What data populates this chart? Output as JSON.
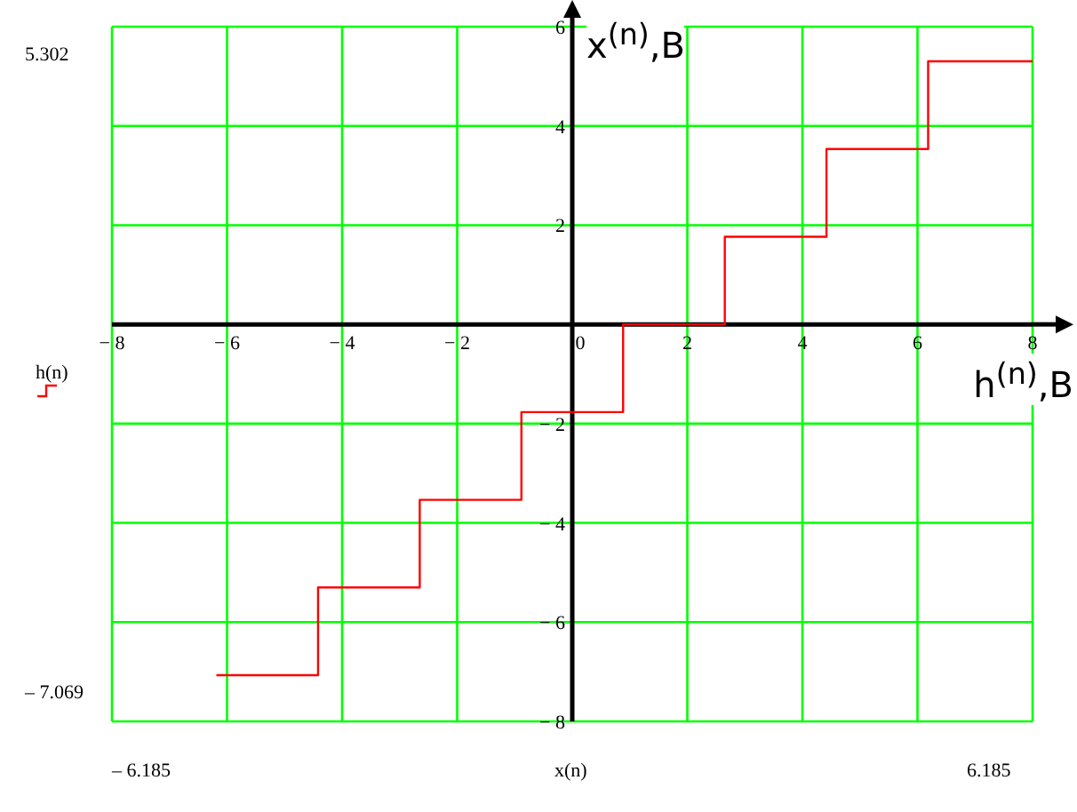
{
  "chart_data": {
    "type": "step",
    "xlabel": "h$^{(n)}$,B",
    "ylabel": "x$^{(n)}$,B",
    "x": [
      -6.185,
      -4.418,
      -2.651,
      -0.884,
      0.884,
      2.651,
      4.418,
      6.185,
      8
    ],
    "series": [
      {
        "name": "h(n)",
        "color": "#ff0000",
        "values": [
          -7.069,
          -5.302,
          -3.535,
          -1.767,
          0,
          1.767,
          3.535,
          5.302,
          5.302
        ]
      }
    ],
    "xlim": [
      -8,
      8
    ],
    "xticks": [
      -8,
      -6,
      -4,
      -2,
      0,
      2,
      4,
      6,
      8
    ],
    "ylim": [
      -8,
      6
    ],
    "yticks": [
      -8,
      -6,
      -4,
      -2,
      {
        "value": 0,
        "label": null
      },
      2,
      4,
      6
    ],
    "grid": true,
    "legend": "left",
    "marker": "none",
    "line_style": "solid",
    "annotations": [
      "5.302",
      "– 7.069",
      "– 6.185",
      "x(n)",
      "6.185"
    ]
  }
}
